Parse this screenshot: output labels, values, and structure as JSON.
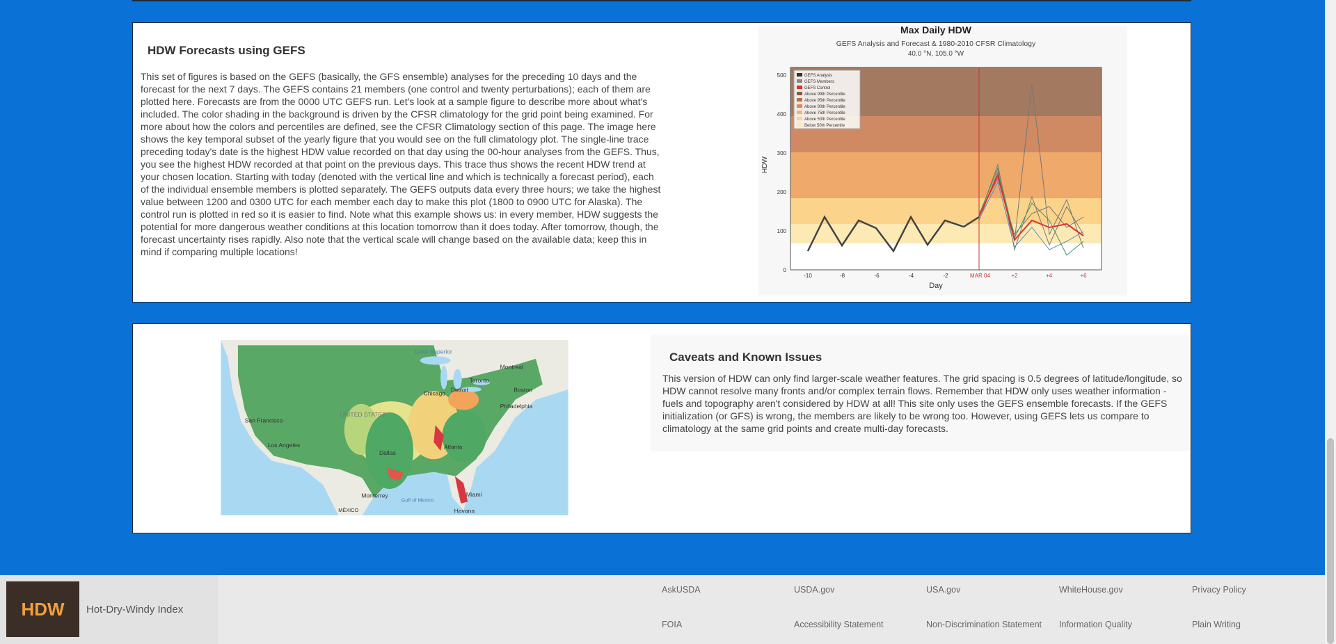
{
  "gefs_section": {
    "title": "HDW Forecasts using GEFS",
    "paragraph": "This set of figures is based on the GEFS (basically, the GFS ensemble) analyses for the preceding 10 days and the forecast for the next 7 days. The GEFS contains 21 members (one control and twenty perturbations); each of them are plotted here. Forecasts are from the 0000 UTC GEFS run. Let's look at a sample figure to describe more about what's included. The color shading in the background is driven by the CFSR climatology for the grid point being examined. For more about how the colors and percentiles are defined, see the CFSR Climatology section of this page. The image here shows the key temporal subset of the yearly figure that you would see on the full climatology plot. The single-line trace preceding today's date is the highest HDW value recorded on that day using the 00-hour analyses from the GEFS. Thus, you see the highest HDW recorded at that point on the previous days. This trace thus shows the recent HDW trend at your chosen location. Starting with today (denoted with the vertical line and which is technically a forecast period), each of the individual ensemble members is plotted separately. The GEFS outputs data every three hours; we take the highest value between 1200 and 0300 UTC for each member each day to make this plot (1800 to 0900 UTC for Alaska). The control run is plotted in red so it is easier to find. Note what this example shows us: in every member, HDW suggests the potential for more dangerous weather conditions at this location tomorrow than it does today. After tomorrow, though, the forecast uncertainty rises rapidly. Also note that the vertical scale will change based on the available data; keep this in mind if comparing multiple locations!"
  },
  "gefs_chart": {
    "title": "Max Daily HDW",
    "subtitle": "GEFS Analysis and Forecast & 1980-2010 CFSR Climatology",
    "location": "40.0 °N, 105.0 °W",
    "y_label": "HDW",
    "x_label": "Day",
    "yticks": [
      "0",
      "100",
      "200",
      "300",
      "400",
      "500"
    ],
    "xticks": [
      "-10",
      "-8",
      "-6",
      "-4",
      "-2",
      "MAR 04",
      "+2",
      "+4",
      "+6"
    ],
    "legend": [
      "GEFS Analysis",
      "GEFS Members",
      "GEFS Control",
      "Above 99th Percentile",
      "Above 95th Percentile",
      "Above 90th Percentile",
      "Above 75th Percentile",
      "Above 50th Percentile",
      "Below 50th Percentile"
    ]
  },
  "map": {
    "labels": [
      "Lake Superior",
      "Montreal",
      "Toronto",
      "Detroit",
      "Chicago",
      "Boston",
      "Philadelphia",
      "San Francisco",
      "Los Angeles",
      "UNITED STATES",
      "Dallas",
      "Atlanta",
      "Monterrey",
      "Gulf of Mexico",
      "Miami",
      "Havana",
      "MÉXICO"
    ]
  },
  "caveats": {
    "title": "Caveats and Known Issues",
    "paragraph": "This version of HDW can only find larger-scale weather features. The grid spacing is 0.5 degrees of latitude/longitude, so HDW cannot resolve many fronts and/or complex terrain flows. Remember that HDW only uses weather information - fuels and topography aren't considered by HDW at all! This site only uses the GEFS ensemble forecasts. If the GEFS initialization (or GFS) is wrong, the members are likely to be wrong too. However, using GEFS lets us compare to climatology at the same grid points and create multi-day forecasts."
  },
  "footer": {
    "logo_text": "HDW",
    "site_name": "Hot-Dry-Windy Index",
    "links": [
      [
        "AskUSDA",
        "USDA.gov",
        "USA.gov",
        "WhiteHouse.gov",
        "Privacy Policy"
      ],
      [
        "FOIA",
        "Accessibility Statement",
        "Non-Discrimination Statement",
        "Information Quality",
        "Plain Writing"
      ]
    ]
  }
}
